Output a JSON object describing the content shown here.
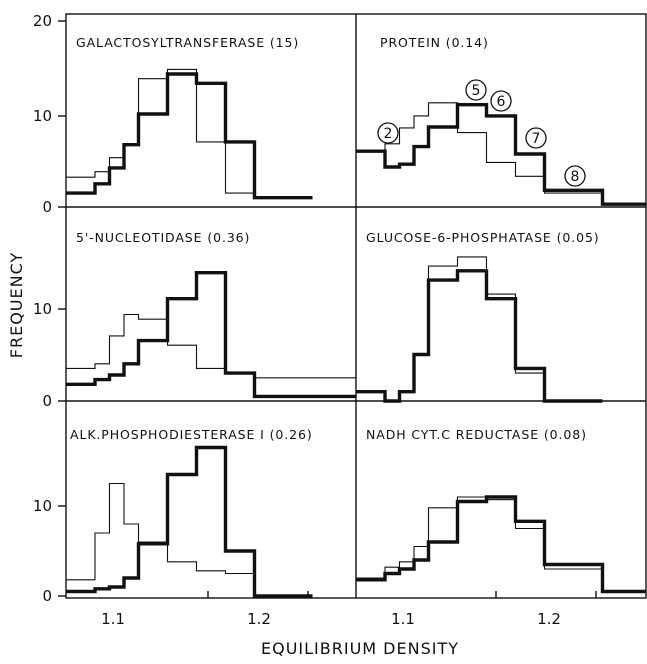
{
  "figure": {
    "xlabel": "EQUILIBRIUM DENSITY",
    "ylabel": "FREQUENCY"
  },
  "chart_data": [
    {
      "type": "line",
      "title": "GALACTOSYLTRANSFERASE (15)",
      "x_edges": [
        1.05,
        1.06,
        1.07,
        1.08,
        1.09,
        1.1,
        1.12,
        1.14,
        1.16,
        1.18,
        1.22
      ],
      "series": [
        {
          "values": [
            1.5,
            1.5,
            2.5,
            4.2,
            6.7,
            10.0,
            14.3,
            13.3,
            7.0,
            1.0
          ],
          "style": "thick"
        },
        {
          "values": [
            3.2,
            3.2,
            3.8,
            5.3,
            6.8,
            13.8,
            14.8,
            7.0,
            1.5,
            1.0
          ],
          "style": "thin"
        }
      ],
      "ylim": [
        0,
        20
      ],
      "yticks": [
        0,
        10,
        20
      ],
      "xlim": [
        1.05,
        1.25
      ]
    },
    {
      "type": "line",
      "title": "PROTEIN (0.14)",
      "x_edges": [
        1.05,
        1.06,
        1.07,
        1.08,
        1.09,
        1.1,
        1.12,
        1.14,
        1.16,
        1.18,
        1.22,
        1.25
      ],
      "series": [
        {
          "values": [
            6.0,
            6.0,
            4.3,
            4.6,
            6.5,
            8.6,
            11.0,
            9.8,
            5.7,
            1.8,
            0.3
          ],
          "style": "thick"
        },
        {
          "values": [
            6.0,
            6.0,
            6.8,
            8.5,
            9.8,
            11.2,
            8.0,
            4.8,
            3.3,
            1.5,
            0.3
          ],
          "style": "thin"
        }
      ],
      "annotations": [
        "2",
        "5",
        "6",
        "7",
        "8"
      ],
      "ylim": [
        0,
        20
      ],
      "xlim": [
        1.05,
        1.25
      ]
    },
    {
      "type": "line",
      "title": "5'-NUCLEOTIDASE (0.36)",
      "x_edges": [
        1.05,
        1.06,
        1.07,
        1.08,
        1.09,
        1.1,
        1.12,
        1.14,
        1.16,
        1.18,
        1.22,
        1.25
      ],
      "series": [
        {
          "values": [
            1.8,
            1.8,
            2.3,
            2.8,
            4.0,
            6.5,
            11.0,
            13.8,
            3.0,
            0.5,
            0.5
          ],
          "style": "thick"
        },
        {
          "values": [
            3.5,
            3.5,
            4.0,
            7.0,
            9.3,
            8.8,
            6.0,
            3.5,
            3.0,
            2.5,
            2.5
          ],
          "style": "thin"
        }
      ],
      "ylim": [
        0,
        20
      ],
      "yticks": [
        0,
        10
      ],
      "xlim": [
        1.05,
        1.25
      ]
    },
    {
      "type": "line",
      "title": "GLUCOSE-6-PHOSPHATASE (0.05)",
      "x_edges": [
        1.05,
        1.06,
        1.07,
        1.08,
        1.09,
        1.1,
        1.12,
        1.14,
        1.16,
        1.18,
        1.22
      ],
      "series": [
        {
          "values": [
            1.0,
            1.0,
            0.0,
            1.0,
            5.0,
            13.0,
            14.0,
            11.0,
            3.5,
            0.0
          ],
          "style": "thick"
        },
        {
          "values": [
            1.0,
            1.0,
            0.0,
            1.0,
            5.0,
            14.5,
            15.5,
            11.5,
            3.0,
            0.0
          ],
          "style": "thin"
        }
      ],
      "ylim": [
        0,
        20
      ],
      "xlim": [
        1.05,
        1.25
      ]
    },
    {
      "type": "line",
      "title": "ALK.PHOSPHODIESTERASE I (0.26)",
      "x_edges": [
        1.05,
        1.06,
        1.07,
        1.08,
        1.09,
        1.1,
        1.12,
        1.14,
        1.16,
        1.18,
        1.22
      ],
      "series": [
        {
          "values": [
            0.5,
            0.5,
            0.8,
            1.0,
            2.0,
            5.8,
            13.5,
            16.5,
            5.0,
            0.0
          ],
          "style": "thick"
        },
        {
          "values": [
            1.8,
            1.8,
            7.0,
            12.5,
            8.0,
            6.0,
            3.8,
            2.8,
            2.5,
            0.0
          ],
          "style": "thin"
        }
      ],
      "ylim": [
        0,
        20
      ],
      "yticks": [
        0,
        10
      ],
      "xticks": [
        "1.1",
        "1.2"
      ],
      "xlim": [
        1.05,
        1.25
      ]
    },
    {
      "type": "line",
      "title": "NADH CYT.C REDUCTASE (0.08)",
      "x_edges": [
        1.05,
        1.06,
        1.07,
        1.08,
        1.09,
        1.1,
        1.12,
        1.14,
        1.16,
        1.18,
        1.22,
        1.25
      ],
      "series": [
        {
          "values": [
            1.8,
            1.8,
            2.5,
            3.0,
            4.0,
            6.0,
            10.5,
            11.0,
            8.3,
            3.5,
            0.5
          ],
          "style": "thick"
        },
        {
          "values": [
            2.0,
            2.0,
            3.2,
            3.8,
            5.5,
            9.8,
            11.0,
            10.7,
            7.5,
            3.0,
            0.5
          ],
          "style": "thin"
        }
      ],
      "ylim": [
        0,
        20
      ],
      "xticks": [
        "1.1",
        "1.2"
      ],
      "xlim": [
        1.05,
        1.25
      ]
    }
  ]
}
